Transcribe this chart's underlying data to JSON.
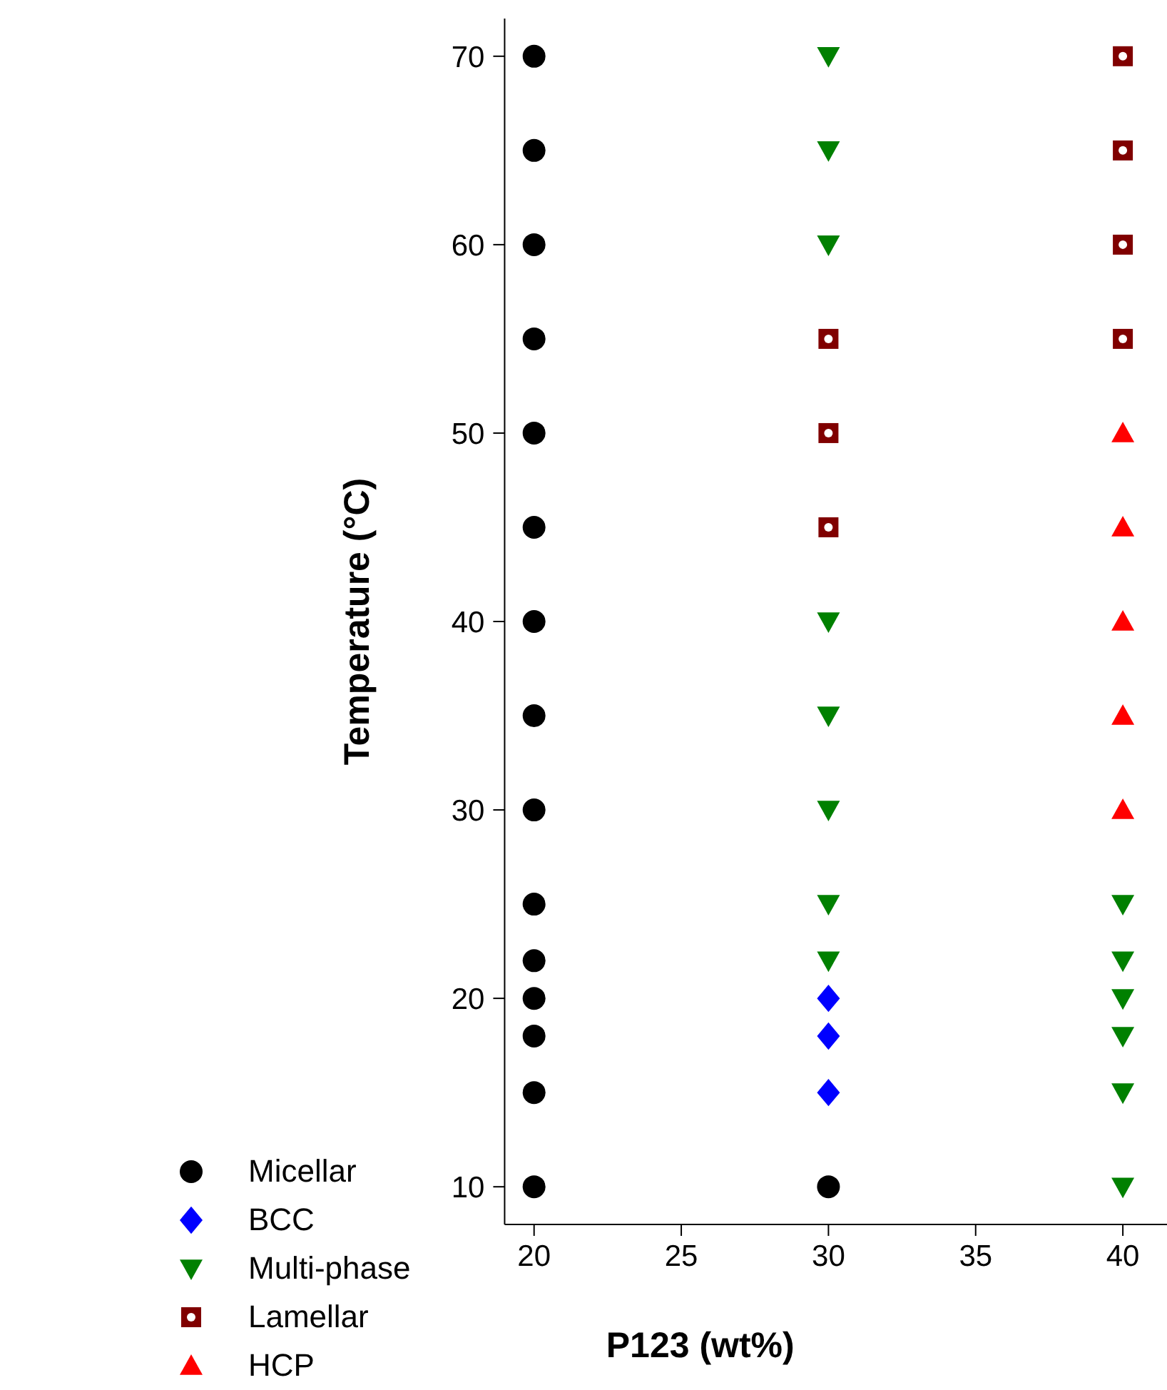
{
  "chart_data": {
    "type": "scatter",
    "xlabel": "P123 (wt%)",
    "ylabel": "Temperature (°C)",
    "xlim": [
      19,
      41.5
    ],
    "xticks": [
      20,
      25,
      30,
      35,
      40
    ],
    "ylim": [
      8,
      72
    ],
    "yticks": [
      10,
      20,
      30,
      40,
      50,
      60,
      70
    ],
    "grid": false,
    "legend": "bottom left",
    "series": [
      {
        "name": "Micellar",
        "color": "#000000",
        "marker": "circle",
        "x": [
          20,
          20,
          20,
          20,
          20,
          20,
          20,
          20,
          20,
          20,
          20,
          20,
          20,
          20,
          20,
          30
        ],
        "values": [
          10,
          15,
          18,
          20,
          22,
          25,
          30,
          35,
          40,
          45,
          50,
          55,
          60,
          65,
          70,
          10
        ]
      },
      {
        "name": "BCC",
        "color": "#0000ff",
        "marker": "diamond",
        "x": [
          30,
          30,
          30
        ],
        "values": [
          15,
          18,
          20
        ]
      },
      {
        "name": "Multi-phase",
        "color": "#008000",
        "marker": "triangle-down",
        "x": [
          30,
          30,
          30,
          30,
          30,
          30,
          30,
          30,
          40,
          40,
          40,
          40,
          40,
          40
        ],
        "values": [
          22,
          25,
          30,
          35,
          40,
          60,
          65,
          70,
          10,
          15,
          18,
          20,
          22,
          25
        ]
      },
      {
        "name": "Lamellar",
        "color": "#800000",
        "marker": "square",
        "x": [
          30,
          30,
          30,
          40,
          40,
          40,
          40
        ],
        "values": [
          45,
          50,
          55,
          55,
          60,
          65,
          70
        ]
      },
      {
        "name": "HCP",
        "color": "#ff0000",
        "marker": "triangle",
        "x": [
          40,
          40,
          40,
          40,
          40
        ],
        "values": [
          30,
          35,
          40,
          45,
          50
        ]
      }
    ]
  }
}
